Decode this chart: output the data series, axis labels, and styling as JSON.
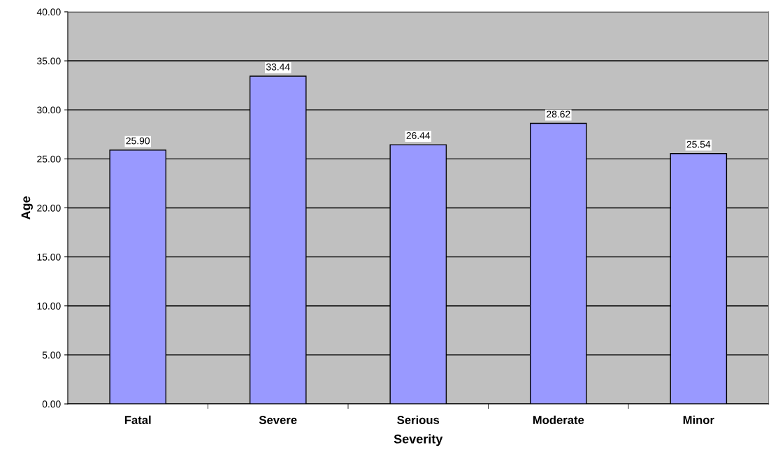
{
  "chart_data": {
    "type": "bar",
    "xlabel": "Severity",
    "ylabel": "Age",
    "categories": [
      "Fatal",
      "Severe",
      "Serious",
      "Moderate",
      "Minor"
    ],
    "values": [
      25.9,
      33.44,
      26.44,
      28.62,
      25.54
    ],
    "value_labels": [
      "25.90",
      "33.44",
      "26.44",
      "28.62",
      "25.54"
    ],
    "color": "#9999ff",
    "ylim": [
      0,
      40
    ],
    "yticks": [
      {
        "value": 0,
        "label": "0.00"
      },
      {
        "value": 5,
        "label": "5.00"
      },
      {
        "value": 10,
        "label": "10.00"
      },
      {
        "value": 15,
        "label": "15.00"
      },
      {
        "value": 20,
        "label": "20.00"
      },
      {
        "value": 25,
        "label": "25.00"
      },
      {
        "value": 30,
        "label": "30.00"
      },
      {
        "value": 35,
        "label": "35.00"
      },
      {
        "value": 40,
        "label": "40.00"
      }
    ],
    "grid": "y"
  }
}
